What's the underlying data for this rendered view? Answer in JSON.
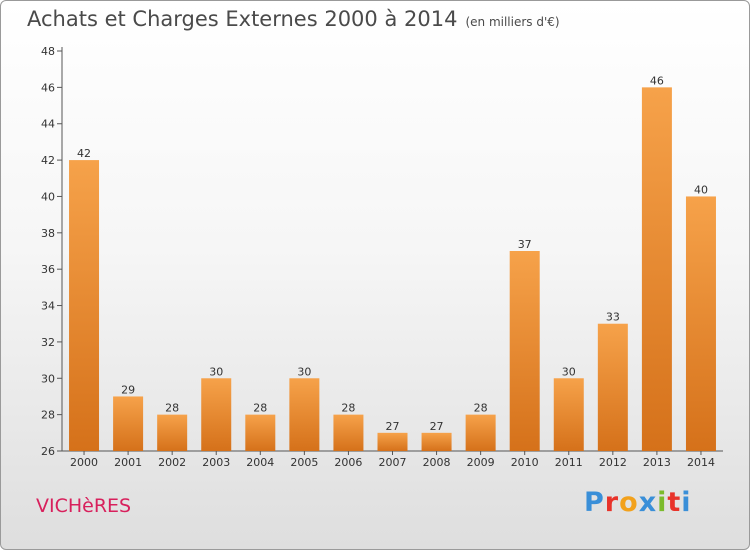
{
  "chart_data": {
    "type": "bar",
    "title": "Achats et Charges Externes 2000 à 2014",
    "subtitle": "(en milliers d'€)",
    "categories": [
      "2000",
      "2001",
      "2002",
      "2003",
      "2004",
      "2005",
      "2006",
      "2007",
      "2008",
      "2009",
      "2010",
      "2011",
      "2012",
      "2013",
      "2014"
    ],
    "values": [
      42,
      29,
      28,
      30,
      28,
      30,
      28,
      27,
      27,
      28,
      37,
      30,
      33,
      46,
      40
    ],
    "ylim": [
      26,
      48
    ],
    "yticks": [
      26,
      28,
      30,
      32,
      34,
      36,
      38,
      40,
      42,
      44,
      46,
      48
    ],
    "grid": false,
    "bar_color_top": "#f6a24a",
    "bar_color_bottom": "#d5711a"
  },
  "footer": {
    "town": "VICHèRES",
    "logo": "Proxiti"
  },
  "colors": {
    "town": "#d8205c",
    "logo_letters": [
      "#3a8fd8",
      "#e8332a",
      "#f2a11c",
      "#3a8fd8",
      "#7bbb2c",
      "#e8332a",
      "#3a8fd8"
    ]
  }
}
